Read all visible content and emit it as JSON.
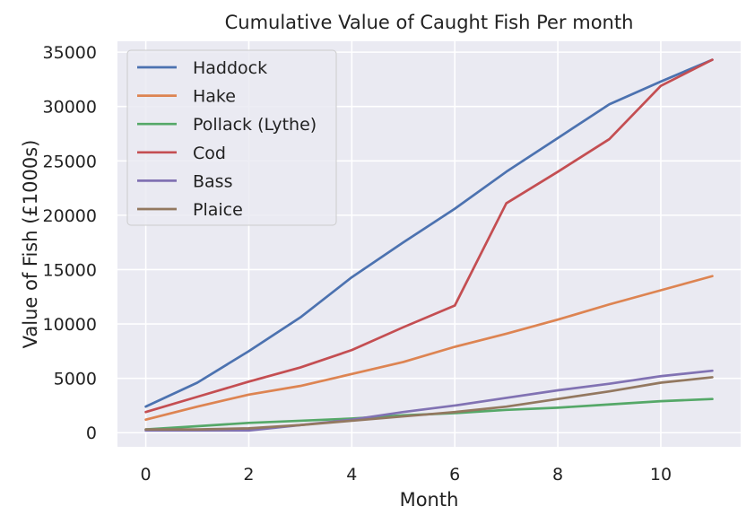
{
  "chart_data": {
    "type": "line",
    "title": "Cumulative Value of Caught Fish Per month",
    "xlabel": "Month",
    "ylabel": "Value of Fish (£1000s)",
    "x": [
      0,
      1,
      2,
      3,
      4,
      5,
      6,
      7,
      8,
      9,
      10,
      11
    ],
    "xlim": [
      -0.55,
      11.55
    ],
    "ylim": [
      -1300,
      36000
    ],
    "xticks": [
      0,
      2,
      4,
      6,
      8,
      10
    ],
    "yticks": [
      0,
      5000,
      10000,
      15000,
      20000,
      25000,
      30000,
      35000
    ],
    "grid": true,
    "legend_position": "top-left",
    "series": [
      {
        "name": "Haddock",
        "color": "#4c72b0",
        "values": [
          2400,
          4600,
          7500,
          10600,
          14300,
          17500,
          20600,
          24000,
          27100,
          30200,
          32300,
          34300
        ]
      },
      {
        "name": "Hake",
        "color": "#dd8452",
        "values": [
          1200,
          2400,
          3500,
          4300,
          5400,
          6500,
          7900,
          9100,
          10400,
          11800,
          13100,
          14400
        ]
      },
      {
        "name": "Pollack (Lythe)",
        "color": "#55a868",
        "values": [
          300,
          600,
          900,
          1100,
          1300,
          1600,
          1800,
          2100,
          2300,
          2600,
          2900,
          3100
        ]
      },
      {
        "name": "Cod",
        "color": "#c44e52",
        "values": [
          1900,
          3300,
          4700,
          6000,
          7600,
          9700,
          11700,
          21100,
          24000,
          27000,
          31900,
          34300
        ]
      },
      {
        "name": "Bass",
        "color": "#8172b3",
        "values": [
          200,
          200,
          200,
          700,
          1200,
          1900,
          2500,
          3200,
          3900,
          4500,
          5200,
          5700
        ]
      },
      {
        "name": "Plaice",
        "color": "#937860",
        "values": [
          300,
          300,
          400,
          700,
          1100,
          1500,
          1900,
          2400,
          3100,
          3800,
          4600,
          5100
        ]
      }
    ]
  }
}
